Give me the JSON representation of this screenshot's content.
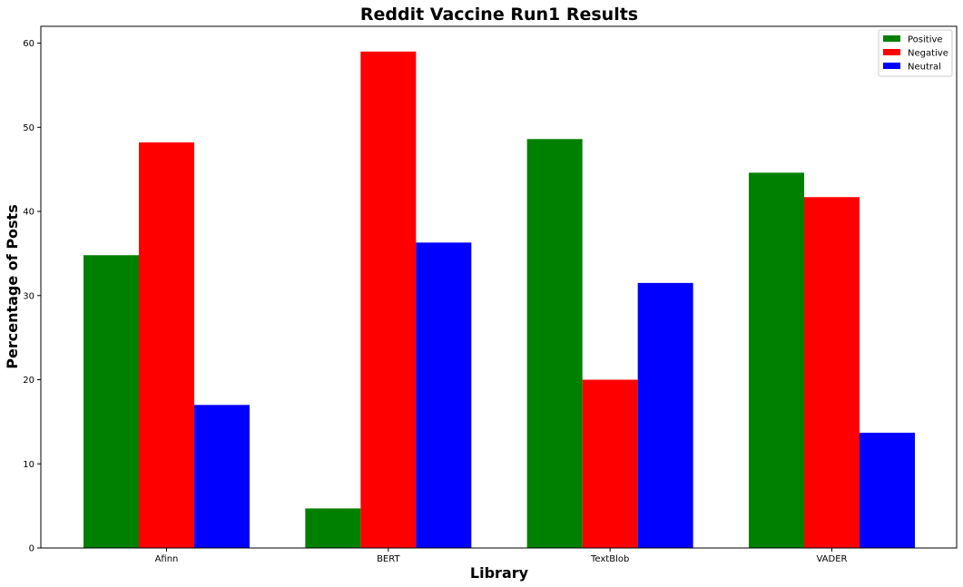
{
  "chart_data": {
    "type": "bar",
    "title": "Reddit Vaccine Run1 Results",
    "xlabel": "Library",
    "ylabel": "Percentage of Posts",
    "categories": [
      "Afinn",
      "BERT",
      "TextBlob",
      "VADER"
    ],
    "series": [
      {
        "name": "Positive",
        "color": "#008000",
        "values": [
          34.8,
          4.7,
          48.6,
          44.6
        ]
      },
      {
        "name": "Negative",
        "color": "#ff0000",
        "values": [
          48.2,
          59.0,
          20.0,
          41.7
        ]
      },
      {
        "name": "Neutral",
        "color": "#0000ff",
        "values": [
          17.0,
          36.3,
          31.5,
          13.7
        ]
      }
    ],
    "ylim": [
      0,
      62
    ],
    "yticks": [
      "0",
      "10",
      "20",
      "30",
      "40",
      "50",
      "60"
    ],
    "grid": false,
    "legend_position": "top-right"
  }
}
